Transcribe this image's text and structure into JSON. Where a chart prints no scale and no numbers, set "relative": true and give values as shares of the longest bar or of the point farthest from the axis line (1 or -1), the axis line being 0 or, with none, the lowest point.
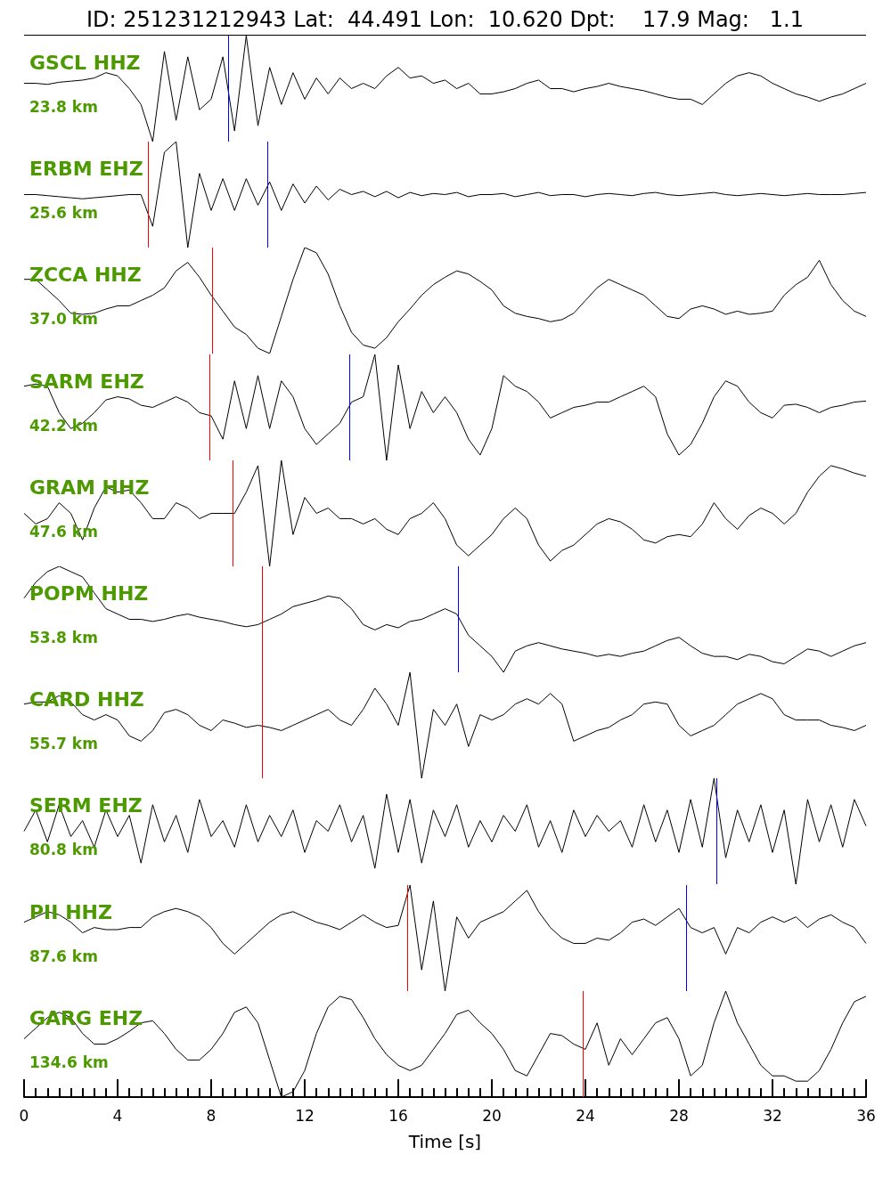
{
  "chart_data": [
    {
      "type": "line",
      "title": "GSCL HHZ",
      "subtitle": "23.8 km",
      "relative": true,
      "tick_labels": false,
      "xlim": [
        0,
        36
      ],
      "annotations": [
        "ID: 251231212943 Lat:  44.491 Lon:  10.620 Dpt:    17.9 Mag:   1.1"
      ],
      "x": [
        0,
        0.5,
        1,
        1.5,
        2,
        2.5,
        3,
        3.5,
        4,
        4.5,
        5,
        5.5,
        6,
        6.5,
        7,
        7.5,
        8,
        8.5,
        9,
        9.5,
        10,
        10.5,
        11,
        11.5,
        12,
        12.5,
        13,
        13.5,
        14,
        14.5,
        15,
        15.5,
        16,
        16.5,
        17,
        17.5,
        18,
        18.5,
        19,
        19.5,
        20,
        20.5,
        21,
        21.5,
        22,
        22.5,
        23,
        23.5,
        24,
        24.5,
        25,
        25.5,
        26,
        26.5,
        27,
        27.5,
        28,
        28.5,
        29,
        29.5,
        30,
        30.5,
        31,
        31.5,
        32,
        32.5,
        33,
        33.5,
        34,
        34.5,
        35,
        35.5,
        36
      ],
      "series": [
        {
          "color": "#000000",
          "values": [
            0.55,
            0.55,
            0.54,
            0.56,
            0.57,
            0.58,
            0.6,
            0.65,
            0.62,
            0.5,
            0.35,
            0.0,
            0.85,
            0.2,
            0.8,
            0.3,
            0.4,
            0.8,
            0.1,
            1.0,
            0.15,
            0.7,
            0.35,
            0.65,
            0.4,
            0.6,
            0.45,
            0.6,
            0.5,
            0.55,
            0.5,
            0.62,
            0.7,
            0.6,
            0.62,
            0.55,
            0.58,
            0.5,
            0.55,
            0.45,
            0.45,
            0.47,
            0.5,
            0.55,
            0.58,
            0.5,
            0.5,
            0.47,
            0.5,
            0.52,
            0.55,
            0.52,
            0.5,
            0.48,
            0.45,
            0.42,
            0.4,
            0.4,
            0.35,
            0.45,
            0.55,
            0.62,
            0.65,
            0.62,
            0.55,
            0.5,
            0.45,
            0.42,
            0.38,
            0.42,
            0.45,
            0.5,
            0.55
          ]
        }
      ],
      "ref_lines": [
        {
          "axis": "x",
          "value": 8.72,
          "color": "#0000ff"
        }
      ]
    },
    {
      "type": "line",
      "title": "ERBM EHZ",
      "subtitle": "25.6 km",
      "relative": true,
      "tick_labels": false,
      "xlim": [
        0,
        36
      ],
      "x": [
        0,
        0.5,
        1,
        1.5,
        2,
        2.5,
        3,
        3.5,
        4,
        4.5,
        5,
        5.5,
        6,
        6.5,
        7,
        7.5,
        8,
        8.5,
        9,
        9.5,
        10,
        10.5,
        11,
        11.5,
        12,
        12.5,
        13,
        13.5,
        14,
        14.5,
        15,
        15.5,
        16,
        16.5,
        17,
        17.5,
        18,
        18.5,
        19,
        19.5,
        20,
        20.5,
        21,
        21.5,
        22,
        22.5,
        23,
        23.5,
        24,
        24.5,
        25,
        25.5,
        26,
        26.5,
        27,
        27.5,
        28,
        28.5,
        29,
        29.5,
        30,
        30.5,
        31,
        31.5,
        32,
        32.5,
        33,
        33.5,
        34,
        34.5,
        35,
        35.5,
        36
      ],
      "series": [
        {
          "color": "#000000",
          "values": [
            0.5,
            0.5,
            0.49,
            0.48,
            0.47,
            0.46,
            0.47,
            0.48,
            0.49,
            0.5,
            0.5,
            0.2,
            0.9,
            1.0,
            0.0,
            0.7,
            0.35,
            0.65,
            0.35,
            0.65,
            0.4,
            0.62,
            0.35,
            0.6,
            0.42,
            0.58,
            0.45,
            0.55,
            0.5,
            0.53,
            0.48,
            0.53,
            0.47,
            0.52,
            0.49,
            0.51,
            0.5,
            0.52,
            0.48,
            0.5,
            0.5,
            0.51,
            0.48,
            0.5,
            0.52,
            0.49,
            0.5,
            0.5,
            0.48,
            0.5,
            0.51,
            0.5,
            0.49,
            0.51,
            0.52,
            0.5,
            0.49,
            0.5,
            0.51,
            0.52,
            0.5,
            0.49,
            0.5,
            0.51,
            0.5,
            0.49,
            0.5,
            0.51,
            0.5,
            0.5,
            0.5,
            0.51,
            0.52
          ]
        }
      ],
      "ref_lines": [
        {
          "axis": "x",
          "value": 5.3,
          "color": "#ff0000"
        },
        {
          "axis": "x",
          "value": 10.4,
          "color": "#0000ff"
        }
      ]
    },
    {
      "type": "line",
      "title": "ZCCA HHZ",
      "subtitle": "37.0 km",
      "relative": true,
      "tick_labels": false,
      "xlim": [
        0,
        36
      ],
      "x": [
        0,
        0.5,
        1,
        1.5,
        2,
        2.5,
        3,
        3.5,
        4,
        4.5,
        5,
        5.5,
        6,
        6.5,
        7,
        7.5,
        8,
        8.5,
        9,
        9.5,
        10,
        10.5,
        11,
        11.5,
        12,
        12.5,
        13,
        13.5,
        14,
        14.5,
        15,
        15.5,
        16,
        16.5,
        17,
        17.5,
        18,
        18.5,
        19,
        19.5,
        20,
        20.5,
        21,
        21.5,
        22,
        22.5,
        23,
        23.5,
        24,
        24.5,
        25,
        25.5,
        26,
        26.5,
        27,
        27.5,
        28,
        28.5,
        29,
        29.5,
        30,
        30.5,
        31,
        31.5,
        32,
        32.5,
        33,
        33.5,
        34,
        34.5,
        35,
        35.5,
        36
      ],
      "series": [
        {
          "color": "#000000",
          "values": [
            0.7,
            0.7,
            0.6,
            0.5,
            0.38,
            0.37,
            0.38,
            0.42,
            0.45,
            0.45,
            0.5,
            0.55,
            0.62,
            0.78,
            0.86,
            0.72,
            0.55,
            0.4,
            0.25,
            0.18,
            0.05,
            0.0,
            0.35,
            0.7,
            1.0,
            0.95,
            0.75,
            0.45,
            0.2,
            0.08,
            0.05,
            0.15,
            0.3,
            0.42,
            0.55,
            0.65,
            0.72,
            0.78,
            0.75,
            0.68,
            0.6,
            0.45,
            0.38,
            0.35,
            0.33,
            0.3,
            0.32,
            0.38,
            0.5,
            0.62,
            0.7,
            0.65,
            0.6,
            0.55,
            0.45,
            0.35,
            0.33,
            0.42,
            0.45,
            0.42,
            0.37,
            0.4,
            0.37,
            0.38,
            0.4,
            0.55,
            0.65,
            0.72,
            0.88,
            0.65,
            0.5,
            0.4,
            0.35
          ]
        }
      ],
      "ref_lines": [
        {
          "axis": "x",
          "value": 8.04,
          "color": "#ff0000"
        }
      ]
    },
    {
      "type": "line",
      "title": "SARM EHZ",
      "subtitle": "42.2 km",
      "relative": true,
      "tick_labels": false,
      "xlim": [
        0,
        36
      ],
      "x": [
        0,
        0.5,
        1,
        1.5,
        2,
        2.5,
        3,
        3.5,
        4,
        4.5,
        5,
        5.5,
        6,
        6.5,
        7,
        7.5,
        8,
        8.5,
        9,
        9.5,
        10,
        10.5,
        11,
        11.5,
        12,
        12.5,
        13,
        13.5,
        14,
        14.5,
        15,
        15.5,
        16,
        16.5,
        17,
        17.5,
        18,
        18.5,
        19,
        19.5,
        20,
        20.5,
        21,
        21.5,
        22,
        22.5,
        23,
        23.5,
        24,
        24.5,
        25,
        25.5,
        26,
        26.5,
        27,
        27.5,
        28,
        28.5,
        29,
        29.5,
        30,
        30.5,
        31,
        31.5,
        32,
        32.5,
        33,
        33.5,
        34,
        34.5,
        35,
        35.5,
        36
      ],
      "series": [
        {
          "color": "#000000",
          "values": [
            0.7,
            0.72,
            0.7,
            0.45,
            0.3,
            0.35,
            0.45,
            0.57,
            0.6,
            0.58,
            0.52,
            0.5,
            0.55,
            0.6,
            0.55,
            0.45,
            0.42,
            0.2,
            0.75,
            0.3,
            0.8,
            0.3,
            0.75,
            0.6,
            0.3,
            0.15,
            0.25,
            0.35,
            0.55,
            0.6,
            1.0,
            0.0,
            0.9,
            0.3,
            0.65,
            0.45,
            0.6,
            0.45,
            0.2,
            0.05,
            0.3,
            0.8,
            0.7,
            0.65,
            0.55,
            0.4,
            0.45,
            0.5,
            0.52,
            0.55,
            0.55,
            0.6,
            0.65,
            0.7,
            0.6,
            0.25,
            0.05,
            0.15,
            0.35,
            0.6,
            0.75,
            0.7,
            0.55,
            0.45,
            0.4,
            0.52,
            0.53,
            0.5,
            0.45,
            0.5,
            0.52,
            0.55,
            0.56
          ]
        }
      ],
      "ref_lines": [
        {
          "axis": "x",
          "value": 7.92,
          "color": "#ff0000"
        },
        {
          "axis": "x",
          "value": 13.9,
          "color": "#0000ff"
        }
      ]
    },
    {
      "type": "line",
      "title": "GRAM HHZ",
      "subtitle": "47.6 km",
      "relative": true,
      "tick_labels": false,
      "xlim": [
        0,
        36
      ],
      "x": [
        0,
        0.5,
        1,
        1.5,
        2,
        2.5,
        3,
        3.5,
        4,
        4.5,
        5,
        5.5,
        6,
        6.5,
        7,
        7.5,
        8,
        8.5,
        9,
        9.5,
        10,
        10.5,
        11,
        11.5,
        12,
        12.5,
        13,
        13.5,
        14,
        14.5,
        15,
        15.5,
        16,
        16.5,
        17,
        17.5,
        18,
        18.5,
        19,
        19.5,
        20,
        20.5,
        21,
        21.5,
        22,
        22.5,
        23,
        23.5,
        24,
        24.5,
        25,
        25.5,
        26,
        26.5,
        27,
        27.5,
        28,
        28.5,
        29,
        29.5,
        30,
        30.5,
        31,
        31.5,
        32,
        32.5,
        33,
        33.5,
        34,
        34.5,
        35,
        35.5,
        36
      ],
      "series": [
        {
          "color": "#000000",
          "values": [
            0.5,
            0.4,
            0.45,
            0.6,
            0.5,
            0.25,
            0.55,
            0.75,
            0.7,
            0.72,
            0.6,
            0.45,
            0.45,
            0.6,
            0.55,
            0.45,
            0.5,
            0.5,
            0.5,
            0.7,
            0.95,
            0.0,
            1.0,
            0.3,
            0.65,
            0.5,
            0.55,
            0.45,
            0.45,
            0.4,
            0.45,
            0.35,
            0.3,
            0.45,
            0.5,
            0.6,
            0.45,
            0.2,
            0.1,
            0.2,
            0.3,
            0.45,
            0.55,
            0.45,
            0.2,
            0.05,
            0.15,
            0.2,
            0.3,
            0.4,
            0.45,
            0.42,
            0.35,
            0.25,
            0.22,
            0.28,
            0.3,
            0.28,
            0.4,
            0.6,
            0.45,
            0.35,
            0.48,
            0.55,
            0.5,
            0.4,
            0.5,
            0.7,
            0.85,
            0.95,
            0.92,
            0.88,
            0.85
          ]
        }
      ],
      "ref_lines": [
        {
          "axis": "x",
          "value": 8.91,
          "color": "#ff0000"
        }
      ]
    },
    {
      "type": "line",
      "title": "POPM HHZ",
      "subtitle": "53.8 km",
      "relative": true,
      "tick_labels": false,
      "xlim": [
        0,
        36
      ],
      "x": [
        0,
        0.5,
        1,
        1.5,
        2,
        2.5,
        3,
        3.5,
        4,
        4.5,
        5,
        5.5,
        6,
        6.5,
        7,
        7.5,
        8,
        8.5,
        9,
        9.5,
        10,
        10.5,
        11,
        11.5,
        12,
        12.5,
        13,
        13.5,
        14,
        14.5,
        15,
        15.5,
        16,
        16.5,
        17,
        17.5,
        18,
        18.5,
        19,
        19.5,
        20,
        20.5,
        21,
        21.5,
        22,
        22.5,
        23,
        23.5,
        24,
        24.5,
        25,
        25.5,
        26,
        26.5,
        27,
        27.5,
        28,
        28.5,
        29,
        29.5,
        30,
        30.5,
        31,
        31.5,
        32,
        32.5,
        33,
        33.5,
        34,
        34.5,
        35,
        35.5,
        36
      ],
      "series": [
        {
          "color": "#000000",
          "values": [
            0.7,
            0.85,
            0.95,
            1.0,
            0.95,
            0.9,
            0.75,
            0.6,
            0.55,
            0.5,
            0.5,
            0.48,
            0.5,
            0.53,
            0.55,
            0.52,
            0.5,
            0.48,
            0.45,
            0.43,
            0.45,
            0.5,
            0.55,
            0.62,
            0.65,
            0.68,
            0.72,
            0.7,
            0.6,
            0.45,
            0.4,
            0.45,
            0.42,
            0.48,
            0.5,
            0.55,
            0.6,
            0.55,
            0.35,
            0.25,
            0.15,
            0.0,
            0.2,
            0.25,
            0.28,
            0.25,
            0.22,
            0.2,
            0.18,
            0.15,
            0.17,
            0.15,
            0.18,
            0.2,
            0.25,
            0.3,
            0.33,
            0.25,
            0.18,
            0.15,
            0.15,
            0.12,
            0.17,
            0.15,
            0.1,
            0.08,
            0.15,
            0.22,
            0.2,
            0.15,
            0.2,
            0.25,
            0.28
          ]
        }
      ],
      "ref_lines": [
        {
          "axis": "x",
          "value": 10.17,
          "color": "#ff0000"
        },
        {
          "axis": "x",
          "value": 18.55,
          "color": "#0000ff"
        }
      ]
    },
    {
      "type": "line",
      "title": "CARD HHZ",
      "subtitle": "55.7 km",
      "relative": true,
      "tick_labels": false,
      "xlim": [
        0,
        36
      ],
      "x": [
        0,
        0.5,
        1,
        1.5,
        2,
        2.5,
        3,
        3.5,
        4,
        4.5,
        5,
        5.5,
        6,
        6.5,
        7,
        7.5,
        8,
        8.5,
        9,
        9.5,
        10,
        10.5,
        11,
        11.5,
        12,
        12.5,
        13,
        13.5,
        14,
        14.5,
        15,
        15.5,
        16,
        16.5,
        17,
        17.5,
        18,
        18.5,
        19,
        19.5,
        20,
        20.5,
        21,
        21.5,
        22,
        22.5,
        23,
        23.5,
        24,
        24.5,
        25,
        25.5,
        26,
        26.5,
        27,
        27.5,
        28,
        28.5,
        29,
        29.5,
        30,
        30.5,
        31,
        31.5,
        32,
        32.5,
        33,
        33.5,
        34,
        34.5,
        35,
        35.5,
        36
      ],
      "series": [
        {
          "color": "#000000",
          "values": [
            0.7,
            0.72,
            0.72,
            0.78,
            0.72,
            0.6,
            0.55,
            0.6,
            0.55,
            0.4,
            0.35,
            0.45,
            0.62,
            0.65,
            0.6,
            0.5,
            0.45,
            0.55,
            0.52,
            0.48,
            0.5,
            0.48,
            0.45,
            0.5,
            0.55,
            0.6,
            0.65,
            0.55,
            0.5,
            0.65,
            0.85,
            0.7,
            0.5,
            1.0,
            0.0,
            0.65,
            0.5,
            0.7,
            0.3,
            0.6,
            0.55,
            0.6,
            0.7,
            0.75,
            0.7,
            0.8,
            0.7,
            0.35,
            0.4,
            0.45,
            0.48,
            0.55,
            0.6,
            0.7,
            0.72,
            0.7,
            0.5,
            0.4,
            0.45,
            0.5,
            0.6,
            0.7,
            0.75,
            0.8,
            0.75,
            0.6,
            0.55,
            0.55,
            0.55,
            0.5,
            0.48,
            0.45,
            0.5
          ]
        }
      ],
      "ref_lines": [
        {
          "axis": "x",
          "value": 10.17,
          "color": "#ff0000"
        }
      ]
    },
    {
      "type": "line",
      "title": "SERM EHZ",
      "subtitle": "80.8 km",
      "relative": true,
      "tick_labels": false,
      "xlim": [
        0,
        36
      ],
      "x": [
        0,
        0.5,
        1,
        1.5,
        2,
        2.5,
        3,
        3.5,
        4,
        4.5,
        5,
        5.5,
        6,
        6.5,
        7,
        7.5,
        8,
        8.5,
        9,
        9.5,
        10,
        10.5,
        11,
        11.5,
        12,
        12.5,
        13,
        13.5,
        14,
        14.5,
        15,
        15.5,
        16,
        16.5,
        17,
        17.5,
        18,
        18.5,
        19,
        19.5,
        20,
        20.5,
        21,
        21.5,
        22,
        22.5,
        23,
        23.5,
        24,
        24.5,
        25,
        25.5,
        26,
        26.5,
        27,
        27.5,
        28,
        28.5,
        29,
        29.5,
        30,
        30.5,
        31,
        31.5,
        32,
        32.5,
        33,
        33.5,
        34,
        34.5,
        35,
        35.5,
        36
      ],
      "series": [
        {
          "color": "#000000",
          "values": [
            0.5,
            0.7,
            0.4,
            0.75,
            0.45,
            0.6,
            0.35,
            0.7,
            0.45,
            0.65,
            0.2,
            0.75,
            0.4,
            0.65,
            0.3,
            0.8,
            0.45,
            0.6,
            0.35,
            0.75,
            0.4,
            0.65,
            0.45,
            0.7,
            0.3,
            0.6,
            0.5,
            0.75,
            0.4,
            0.65,
            0.15,
            0.85,
            0.3,
            0.8,
            0.2,
            0.7,
            0.45,
            0.75,
            0.35,
            0.6,
            0.4,
            0.65,
            0.5,
            0.75,
            0.35,
            0.6,
            0.3,
            0.7,
            0.45,
            0.65,
            0.5,
            0.6,
            0.35,
            0.75,
            0.4,
            0.7,
            0.3,
            0.8,
            0.35,
            1.0,
            0.25,
            0.7,
            0.4,
            0.75,
            0.3,
            0.7,
            0.0,
            0.8,
            0.4,
            0.75,
            0.35,
            0.8,
            0.55
          ]
        }
      ],
      "ref_lines": [
        {
          "axis": "x",
          "value": 29.6,
          "color": "#0000ff"
        }
      ]
    },
    {
      "type": "line",
      "title": "PII HHZ",
      "subtitle": "87.6 km",
      "relative": true,
      "tick_labels": false,
      "xlim": [
        0,
        36
      ],
      "x": [
        0,
        0.5,
        1,
        1.5,
        2,
        2.5,
        3,
        3.5,
        4,
        4.5,
        5,
        5.5,
        6,
        6.5,
        7,
        7.5,
        8,
        8.5,
        9,
        9.5,
        10,
        10.5,
        11,
        11.5,
        12,
        12.5,
        13,
        13.5,
        14,
        14.5,
        15,
        15.5,
        16,
        16.5,
        17,
        17.5,
        18,
        18.5,
        19,
        19.5,
        20,
        20.5,
        21,
        21.5,
        22,
        22.5,
        23,
        23.5,
        24,
        24.5,
        25,
        25.5,
        26,
        26.5,
        27,
        27.5,
        28,
        28.5,
        29,
        29.5,
        30,
        30.5,
        31,
        31.5,
        32,
        32.5,
        33,
        33.5,
        34,
        34.5,
        35,
        35.5,
        36
      ],
      "series": [
        {
          "color": "#000000",
          "values": [
            0.65,
            0.7,
            0.75,
            0.72,
            0.65,
            0.55,
            0.6,
            0.58,
            0.58,
            0.6,
            0.6,
            0.7,
            0.75,
            0.78,
            0.75,
            0.7,
            0.6,
            0.45,
            0.35,
            0.45,
            0.55,
            0.65,
            0.72,
            0.75,
            0.7,
            0.65,
            0.62,
            0.58,
            0.65,
            0.72,
            0.65,
            0.6,
            0.62,
            1.0,
            0.2,
            0.85,
            0.0,
            0.7,
            0.5,
            0.65,
            0.7,
            0.75,
            0.85,
            0.95,
            0.75,
            0.6,
            0.5,
            0.45,
            0.45,
            0.5,
            0.48,
            0.55,
            0.65,
            0.68,
            0.62,
            0.7,
            0.78,
            0.6,
            0.55,
            0.6,
            0.35,
            0.6,
            0.55,
            0.65,
            0.7,
            0.65,
            0.7,
            0.6,
            0.68,
            0.72,
            0.65,
            0.6,
            0.45
          ]
        }
      ],
      "ref_lines": [
        {
          "axis": "x",
          "value": 16.38,
          "color": "#ff0000"
        },
        {
          "axis": "x",
          "value": 28.3,
          "color": "#0000ff"
        }
      ]
    },
    {
      "type": "line",
      "title": "GARG EHZ",
      "subtitle": "134.6 km",
      "relative": true,
      "xlim": [
        0,
        36
      ],
      "xlabel": "Time [s]",
      "xticks": [
        0,
        {
          "value": 0.5,
          "label": null
        },
        {
          "value": 1,
          "label": null
        },
        {
          "value": 1.5,
          "label": null
        },
        {
          "value": 2,
          "label": null
        },
        {
          "value": 2.5,
          "label": null
        },
        {
          "value": 3,
          "label": null
        },
        {
          "value": 3.5,
          "label": null
        },
        4,
        {
          "value": 4.5,
          "label": null
        },
        {
          "value": 5,
          "label": null
        },
        {
          "value": 5.5,
          "label": null
        },
        {
          "value": 6,
          "label": null
        },
        {
          "value": 6.5,
          "label": null
        },
        {
          "value": 7,
          "label": null
        },
        {
          "value": 7.5,
          "label": null
        },
        8,
        {
          "value": 8.5,
          "label": null
        },
        {
          "value": 9,
          "label": null
        },
        {
          "value": 9.5,
          "label": null
        },
        {
          "value": 10,
          "label": null
        },
        {
          "value": 10.5,
          "label": null
        },
        {
          "value": 11,
          "label": null
        },
        {
          "value": 11.5,
          "label": null
        },
        12,
        {
          "value": 12.5,
          "label": null
        },
        {
          "value": 13,
          "label": null
        },
        {
          "value": 13.5,
          "label": null
        },
        {
          "value": 14,
          "label": null
        },
        {
          "value": 14.5,
          "label": null
        },
        {
          "value": 15,
          "label": null
        },
        {
          "value": 15.5,
          "label": null
        },
        16,
        {
          "value": 16.5,
          "label": null
        },
        {
          "value": 17,
          "label": null
        },
        {
          "value": 17.5,
          "label": null
        },
        {
          "value": 18,
          "label": null
        },
        {
          "value": 18.5,
          "label": null
        },
        {
          "value": 19,
          "label": null
        },
        {
          "value": 19.5,
          "label": null
        },
        20,
        {
          "value": 20.5,
          "label": null
        },
        {
          "value": 21,
          "label": null
        },
        {
          "value": 21.5,
          "label": null
        },
        {
          "value": 22,
          "label": null
        },
        {
          "value": 22.5,
          "label": null
        },
        {
          "value": 23,
          "label": null
        },
        {
          "value": 23.5,
          "label": null
        },
        24,
        {
          "value": 24.5,
          "label": null
        },
        {
          "value": 25,
          "label": null
        },
        {
          "value": 25.5,
          "label": null
        },
        {
          "value": 26,
          "label": null
        },
        {
          "value": 26.5,
          "label": null
        },
        {
          "value": 27,
          "label": null
        },
        {
          "value": 27.5,
          "label": null
        },
        28,
        {
          "value": 28.5,
          "label": null
        },
        {
          "value": 29,
          "label": null
        },
        {
          "value": 29.5,
          "label": null
        },
        {
          "value": 30,
          "label": null
        },
        {
          "value": 30.5,
          "label": null
        },
        {
          "value": 31,
          "label": null
        },
        {
          "value": 31.5,
          "label": null
        },
        32,
        {
          "value": 32.5,
          "label": null
        },
        {
          "value": 33,
          "label": null
        },
        {
          "value": 33.5,
          "label": null
        },
        {
          "value": 34,
          "label": null
        },
        {
          "value": 34.5,
          "label": null
        },
        {
          "value": 35,
          "label": null
        },
        {
          "value": 35.5,
          "label": null
        },
        36
      ],
      "x": [
        0,
        0.5,
        1,
        1.5,
        2,
        2.5,
        3,
        3.5,
        4,
        4.5,
        5,
        5.5,
        6,
        6.5,
        7,
        7.5,
        8,
        8.5,
        9,
        9.5,
        10,
        10.5,
        11,
        11.5,
        12,
        12.5,
        13,
        13.5,
        14,
        14.5,
        15,
        15.5,
        16,
        16.5,
        17,
        17.5,
        18,
        18.5,
        19,
        19.5,
        20,
        20.5,
        21,
        21.5,
        22,
        22.5,
        23,
        23.5,
        24,
        24.5,
        25,
        25.5,
        26,
        26.5,
        27,
        27.5,
        28,
        28.5,
        29,
        29.5,
        30,
        30.5,
        31,
        31.5,
        32,
        32.5,
        33,
        33.5,
        34,
        34.5,
        35,
        35.5,
        36
      ],
      "series": [
        {
          "color": "#000000",
          "values": [
            0.55,
            0.65,
            0.75,
            0.8,
            0.75,
            0.6,
            0.5,
            0.5,
            0.55,
            0.62,
            0.7,
            0.72,
            0.6,
            0.45,
            0.35,
            0.35,
            0.45,
            0.6,
            0.8,
            0.85,
            0.7,
            0.35,
            0.0,
            0.05,
            0.25,
            0.6,
            0.85,
            0.95,
            0.92,
            0.75,
            0.55,
            0.4,
            0.3,
            0.25,
            0.3,
            0.45,
            0.6,
            0.78,
            0.82,
            0.7,
            0.6,
            0.45,
            0.25,
            0.2,
            0.4,
            0.6,
            0.58,
            0.5,
            0.45,
            0.7,
            0.3,
            0.55,
            0.4,
            0.55,
            0.7,
            0.75,
            0.55,
            0.2,
            0.3,
            0.7,
            1.0,
            0.7,
            0.5,
            0.3,
            0.2,
            0.2,
            0.15,
            0.15,
            0.25,
            0.45,
            0.7,
            0.9,
            0.95
          ]
        }
      ],
      "ref_lines": [
        {
          "axis": "x",
          "value": 23.89,
          "color": "#ff0000"
        }
      ]
    }
  ]
}
